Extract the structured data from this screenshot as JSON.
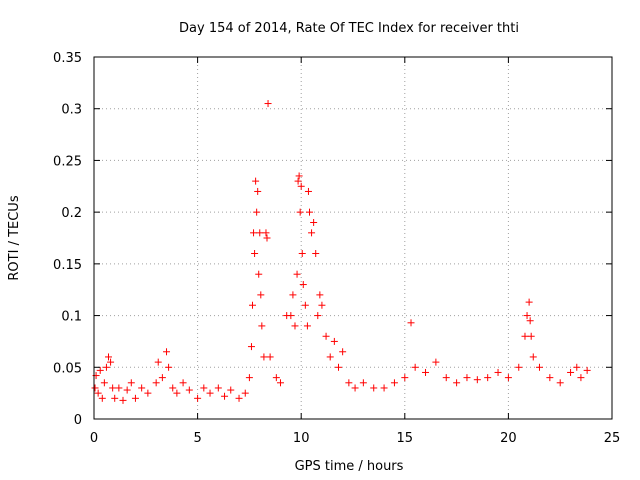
{
  "chart_data": {
    "type": "scatter",
    "title": "Day 154 of 2014, Rate Of TEC Index for receiver thti",
    "xlabel": "GPS time / hours",
    "ylabel": "ROTI / TECUs",
    "xlim": [
      0,
      25
    ],
    "ylim": [
      0,
      0.35
    ],
    "xticks": [
      0,
      5,
      10,
      15,
      20,
      25
    ],
    "yticks": [
      0,
      0.05,
      0.1,
      0.15,
      0.2,
      0.25,
      0.3,
      0.35
    ],
    "xtick_labels": [
      "0",
      "5",
      "10",
      "15",
      "20",
      "25"
    ],
    "ytick_labels": [
      "0",
      "0.05",
      "0.1",
      "0.15",
      "0.2",
      "0.25",
      "0.3",
      "0.35"
    ],
    "grid": true,
    "marker": "+",
    "color": "#ff0000",
    "series": [
      {
        "name": "ROTI",
        "points": [
          [
            0.05,
            0.03
          ],
          [
            0.1,
            0.042
          ],
          [
            0.2,
            0.025
          ],
          [
            0.3,
            0.047
          ],
          [
            0.4,
            0.02
          ],
          [
            0.5,
            0.035
          ],
          [
            0.6,
            0.05
          ],
          [
            0.7,
            0.06
          ],
          [
            0.8,
            0.055
          ],
          [
            0.9,
            0.03
          ],
          [
            1.0,
            0.02
          ],
          [
            1.2,
            0.03
          ],
          [
            1.4,
            0.018
          ],
          [
            1.6,
            0.028
          ],
          [
            1.8,
            0.035
          ],
          [
            2.0,
            0.02
          ],
          [
            2.3,
            0.03
          ],
          [
            2.6,
            0.025
          ],
          [
            3.0,
            0.035
          ],
          [
            3.1,
            0.055
          ],
          [
            3.3,
            0.04
          ],
          [
            3.5,
            0.065
          ],
          [
            3.6,
            0.05
          ],
          [
            3.8,
            0.03
          ],
          [
            4.0,
            0.025
          ],
          [
            4.3,
            0.035
          ],
          [
            4.6,
            0.028
          ],
          [
            5.0,
            0.02
          ],
          [
            5.3,
            0.03
          ],
          [
            5.6,
            0.025
          ],
          [
            6.0,
            0.03
          ],
          [
            6.3,
            0.022
          ],
          [
            6.6,
            0.028
          ],
          [
            7.0,
            0.02
          ],
          [
            7.3,
            0.025
          ],
          [
            7.5,
            0.04
          ],
          [
            7.6,
            0.07
          ],
          [
            7.65,
            0.11
          ],
          [
            7.7,
            0.18
          ],
          [
            7.75,
            0.16
          ],
          [
            7.8,
            0.23
          ],
          [
            7.85,
            0.2
          ],
          [
            7.9,
            0.22
          ],
          [
            7.95,
            0.14
          ],
          [
            8.0,
            0.18
          ],
          [
            8.05,
            0.12
          ],
          [
            8.1,
            0.09
          ],
          [
            8.2,
            0.06
          ],
          [
            8.3,
            0.18
          ],
          [
            8.35,
            0.175
          ],
          [
            8.4,
            0.305
          ],
          [
            8.5,
            0.06
          ],
          [
            8.8,
            0.04
          ],
          [
            9.0,
            0.035
          ],
          [
            9.3,
            0.1
          ],
          [
            9.5,
            0.1
          ],
          [
            9.6,
            0.12
          ],
          [
            9.7,
            0.09
          ],
          [
            9.8,
            0.14
          ],
          [
            9.85,
            0.23
          ],
          [
            9.9,
            0.235
          ],
          [
            9.95,
            0.2
          ],
          [
            10.0,
            0.225
          ],
          [
            10.05,
            0.16
          ],
          [
            10.1,
            0.13
          ],
          [
            10.2,
            0.11
          ],
          [
            10.3,
            0.09
          ],
          [
            10.35,
            0.22
          ],
          [
            10.4,
            0.2
          ],
          [
            10.5,
            0.18
          ],
          [
            10.6,
            0.19
          ],
          [
            10.7,
            0.16
          ],
          [
            10.8,
            0.1
          ],
          [
            10.9,
            0.12
          ],
          [
            11.0,
            0.11
          ],
          [
            11.2,
            0.08
          ],
          [
            11.4,
            0.06
          ],
          [
            11.6,
            0.075
          ],
          [
            11.8,
            0.05
          ],
          [
            12.0,
            0.065
          ],
          [
            12.3,
            0.035
          ],
          [
            12.6,
            0.03
          ],
          [
            13.0,
            0.035
          ],
          [
            13.5,
            0.03
          ],
          [
            14.0,
            0.03
          ],
          [
            14.5,
            0.035
          ],
          [
            15.0,
            0.04
          ],
          [
            15.3,
            0.093
          ],
          [
            15.5,
            0.05
          ],
          [
            16.0,
            0.045
          ],
          [
            16.5,
            0.055
          ],
          [
            17.0,
            0.04
          ],
          [
            17.5,
            0.035
          ],
          [
            18.0,
            0.04
          ],
          [
            18.5,
            0.038
          ],
          [
            19.0,
            0.04
          ],
          [
            19.5,
            0.045
          ],
          [
            20.0,
            0.04
          ],
          [
            20.5,
            0.05
          ],
          [
            20.8,
            0.08
          ],
          [
            20.9,
            0.1
          ],
          [
            21.0,
            0.113
          ],
          [
            21.05,
            0.095
          ],
          [
            21.1,
            0.08
          ],
          [
            21.2,
            0.06
          ],
          [
            21.5,
            0.05
          ],
          [
            22.0,
            0.04
          ],
          [
            22.5,
            0.035
          ],
          [
            23.0,
            0.045
          ],
          [
            23.3,
            0.05
          ],
          [
            23.5,
            0.04
          ],
          [
            23.8,
            0.047
          ]
        ]
      }
    ]
  }
}
